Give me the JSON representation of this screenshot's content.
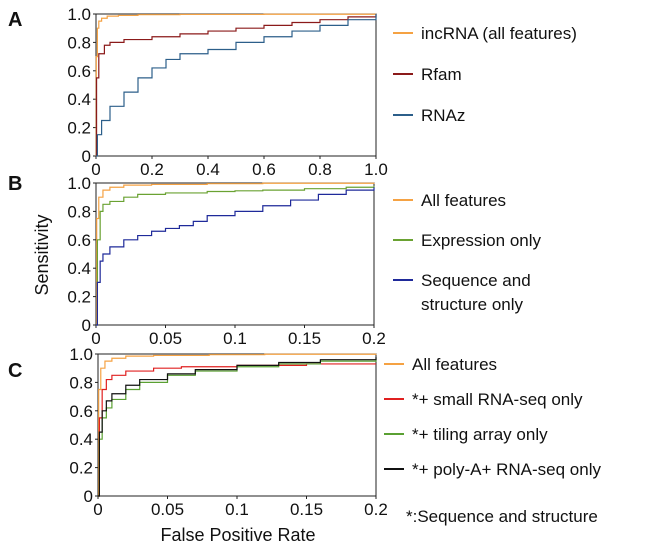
{
  "figure": {
    "ylabel": "Sensitivity",
    "xlabel": "False Positive Rate",
    "footnote": "*:Sequence and structure"
  },
  "chart_data": [
    {
      "type": "line",
      "panel": "A",
      "xlim": [
        0,
        1.0
      ],
      "ylim": [
        0,
        1.0
      ],
      "x_ticks": [
        "0",
        "0.2",
        "0.4",
        "0.6",
        "0.8",
        "1.0"
      ],
      "y_ticks": [
        "0",
        "0.2",
        "0.4",
        "0.6",
        "0.8",
        "1.0"
      ],
      "legend_position": "right",
      "series": [
        {
          "name": "incRNA (all features)",
          "color": "#f5a243",
          "x": [
            0,
            0.001,
            0.005,
            0.01,
            0.02,
            0.04,
            0.08,
            0.15,
            0.3,
            0.6,
            1.0
          ],
          "y": [
            0,
            0.7,
            0.9,
            0.95,
            0.97,
            0.985,
            0.99,
            0.995,
            0.997,
            0.998,
            1.0
          ]
        },
        {
          "name": "Rfam",
          "color": "#8b1a1a",
          "x": [
            0,
            0.002,
            0.01,
            0.03,
            0.05,
            0.1,
            0.2,
            0.3,
            0.4,
            0.5,
            0.6,
            0.7,
            0.8,
            0.9,
            1.0
          ],
          "y": [
            0,
            0.55,
            0.72,
            0.78,
            0.8,
            0.82,
            0.84,
            0.86,
            0.88,
            0.9,
            0.92,
            0.94,
            0.96,
            0.98,
            1.0
          ]
        },
        {
          "name": "RNAz",
          "color": "#2c5f8a",
          "x": [
            0,
            0.005,
            0.02,
            0.05,
            0.1,
            0.15,
            0.2,
            0.25,
            0.3,
            0.4,
            0.5,
            0.6,
            0.7,
            0.8,
            0.9,
            1.0
          ],
          "y": [
            0,
            0.15,
            0.25,
            0.35,
            0.45,
            0.55,
            0.62,
            0.68,
            0.72,
            0.75,
            0.8,
            0.84,
            0.88,
            0.92,
            0.96,
            1.0
          ]
        }
      ]
    },
    {
      "type": "line",
      "panel": "B",
      "xlim": [
        0,
        0.2
      ],
      "ylim": [
        0,
        1.0
      ],
      "x_ticks": [
        "0",
        "0.05",
        "0.1",
        "0.15",
        "0.2"
      ],
      "y_ticks": [
        "0",
        "0.2",
        "0.4",
        "0.6",
        "0.8",
        "1.0"
      ],
      "legend_position": "right",
      "series": [
        {
          "name": "All features",
          "color": "#f5a243",
          "x": [
            0,
            0.0005,
            0.002,
            0.005,
            0.01,
            0.02,
            0.04,
            0.08,
            0.12,
            0.2
          ],
          "y": [
            0,
            0.75,
            0.9,
            0.95,
            0.97,
            0.985,
            0.99,
            0.995,
            0.998,
            1.0
          ]
        },
        {
          "name": "Expression only",
          "color": "#6aa232",
          "x": [
            0,
            0.001,
            0.003,
            0.005,
            0.01,
            0.02,
            0.03,
            0.05,
            0.08,
            0.1,
            0.12,
            0.15,
            0.18,
            0.2
          ],
          "y": [
            0,
            0.6,
            0.8,
            0.85,
            0.87,
            0.9,
            0.92,
            0.93,
            0.94,
            0.945,
            0.95,
            0.96,
            0.97,
            0.98
          ]
        },
        {
          "name": "Sequence and\nstructure only",
          "color": "#1f2a9a",
          "x": [
            0,
            0.001,
            0.003,
            0.005,
            0.01,
            0.02,
            0.03,
            0.04,
            0.05,
            0.06,
            0.07,
            0.08,
            0.1,
            0.12,
            0.14,
            0.16,
            0.18,
            0.2
          ],
          "y": [
            0,
            0.3,
            0.45,
            0.5,
            0.55,
            0.6,
            0.63,
            0.66,
            0.68,
            0.7,
            0.73,
            0.77,
            0.8,
            0.84,
            0.88,
            0.92,
            0.95,
            0.97
          ]
        }
      ]
    },
    {
      "type": "line",
      "panel": "C",
      "xlim": [
        0,
        0.2
      ],
      "ylim": [
        0,
        1.0
      ],
      "x_ticks": [
        "0",
        "0.05",
        "0.1",
        "0.15",
        "0.2"
      ],
      "y_ticks": [
        "0",
        "0.2",
        "0.4",
        "0.6",
        "0.8",
        "1.0"
      ],
      "legend_position": "right",
      "series": [
        {
          "name": "All features",
          "color": "#f5a243",
          "x": [
            0,
            0.0005,
            0.002,
            0.005,
            0.01,
            0.02,
            0.04,
            0.08,
            0.12,
            0.2
          ],
          "y": [
            0,
            0.75,
            0.9,
            0.95,
            0.97,
            0.985,
            0.99,
            0.995,
            0.998,
            1.0
          ]
        },
        {
          "name": "*+ small RNA-seq only",
          "color": "#e02020",
          "x": [
            0,
            0.001,
            0.003,
            0.006,
            0.01,
            0.02,
            0.04,
            0.06,
            0.1,
            0.15,
            0.2
          ],
          "y": [
            0,
            0.55,
            0.75,
            0.82,
            0.85,
            0.88,
            0.9,
            0.91,
            0.92,
            0.93,
            0.93
          ]
        },
        {
          "name": "*+ tiling array only",
          "color": "#5aa032",
          "x": [
            0,
            0.001,
            0.003,
            0.006,
            0.01,
            0.02,
            0.03,
            0.05,
            0.07,
            0.1,
            0.13,
            0.16,
            0.2
          ],
          "y": [
            0,
            0.4,
            0.55,
            0.62,
            0.68,
            0.75,
            0.8,
            0.85,
            0.88,
            0.91,
            0.93,
            0.95,
            0.97
          ]
        },
        {
          "name": "*+ poly-A+ RNA-seq only",
          "color": "#111111",
          "x": [
            0,
            0.001,
            0.003,
            0.006,
            0.01,
            0.02,
            0.03,
            0.05,
            0.07,
            0.1,
            0.13,
            0.16,
            0.2
          ],
          "y": [
            0,
            0.45,
            0.6,
            0.67,
            0.72,
            0.78,
            0.82,
            0.86,
            0.89,
            0.92,
            0.94,
            0.96,
            0.98
          ]
        }
      ]
    }
  ]
}
